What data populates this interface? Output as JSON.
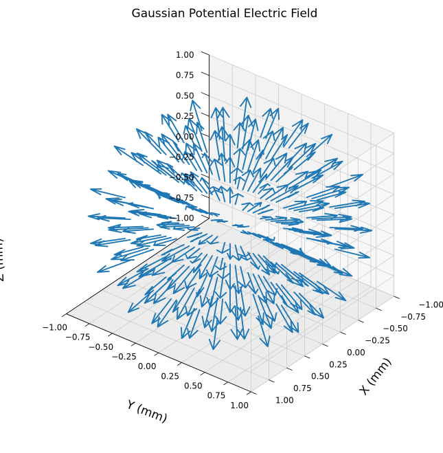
{
  "chart_data": {
    "type": "quiver3d",
    "title": "Gaussian Potential Electric Field",
    "xlabel": "X (mm)",
    "ylabel": "Y (mm)",
    "zlabel": "Z (mm)",
    "xlim": [
      -1.0,
      1.0
    ],
    "ylim": [
      -1.0,
      1.0
    ],
    "zlim": [
      -1.0,
      1.0
    ],
    "x_ticks": [
      "−1.00",
      "−0.75",
      "−0.50",
      "−0.25",
      "0.00",
      "0.25",
      "0.50",
      "0.75",
      "1.00"
    ],
    "y_ticks": [
      "−1.00",
      "−0.75",
      "−0.50",
      "−0.25",
      "0.00",
      "0.25",
      "0.50",
      "0.75",
      "1.00"
    ],
    "z_ticks": [
      "−1.00",
      "−0.75",
      "−0.50",
      "−0.25",
      "0.00",
      "0.25",
      "0.50",
      "0.75",
      "1.00"
    ],
    "grid": true,
    "field": "radial outward arrows from origin, magnitude peaking near r≈0.7",
    "arrow_color": "#1f77b4",
    "pane_color": "#f2f2f2",
    "grid_color": "#cccccc"
  }
}
